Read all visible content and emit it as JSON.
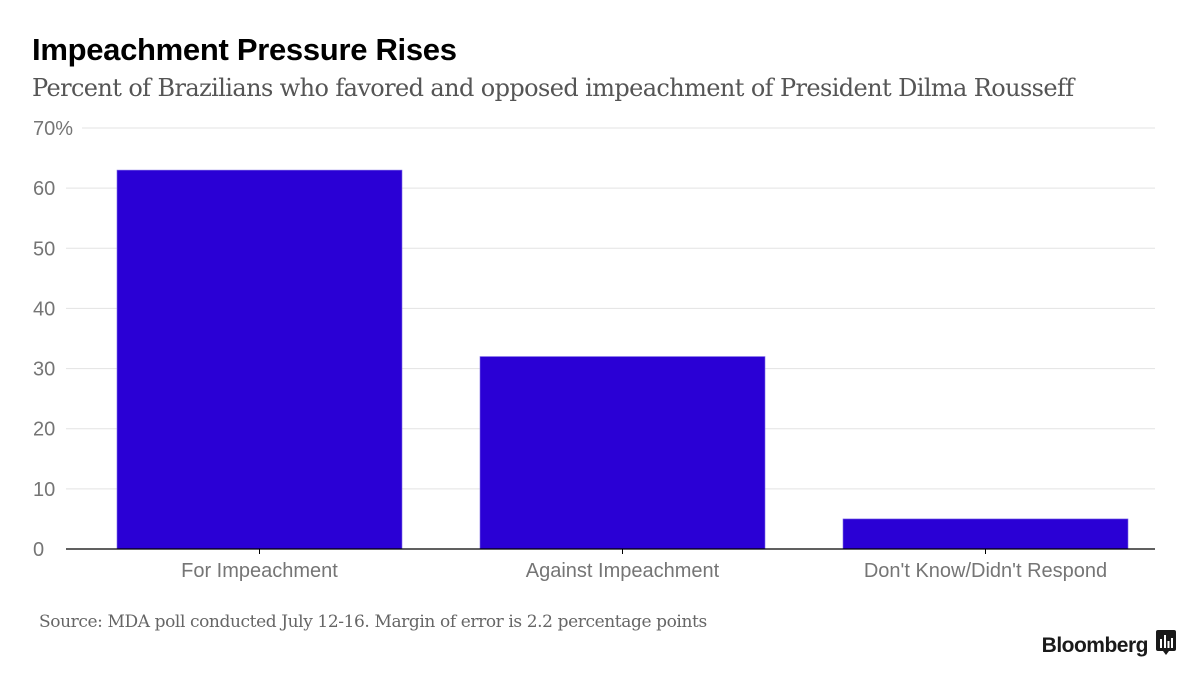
{
  "header": {
    "title": "Impeachment Pressure Rises",
    "subtitle": "Percent of Brazilians who favored and opposed impeachment of President Dilma Rousseff"
  },
  "footer": {
    "source": "Source: MDA poll conducted July 12-16. Margin of error is 2.2 percentage points",
    "brand": "Bloomberg",
    "brand_icon": "bloomberg-chart-icon"
  },
  "colors": {
    "bar": "#2a00d5",
    "gridline": "#e3e3e3",
    "axis": "#000000"
  },
  "chart_data": {
    "type": "bar",
    "title": "Impeachment Pressure Rises",
    "subtitle": "Percent of Brazilians who favored and opposed impeachment of President Dilma Rousseff",
    "xlabel": "",
    "ylabel": "",
    "categories": [
      "For Impeachment",
      "Against Impeachment",
      "Don't Know/Didn't Respond"
    ],
    "values": [
      63,
      32,
      5
    ],
    "ylim": [
      0,
      70
    ],
    "yticks": [
      0,
      10,
      20,
      30,
      40,
      50,
      60,
      70
    ],
    "ytick_labels": [
      "0",
      "10",
      "20",
      "30",
      "40",
      "50",
      "60",
      "70%"
    ],
    "grid": true,
    "legend": "none"
  }
}
